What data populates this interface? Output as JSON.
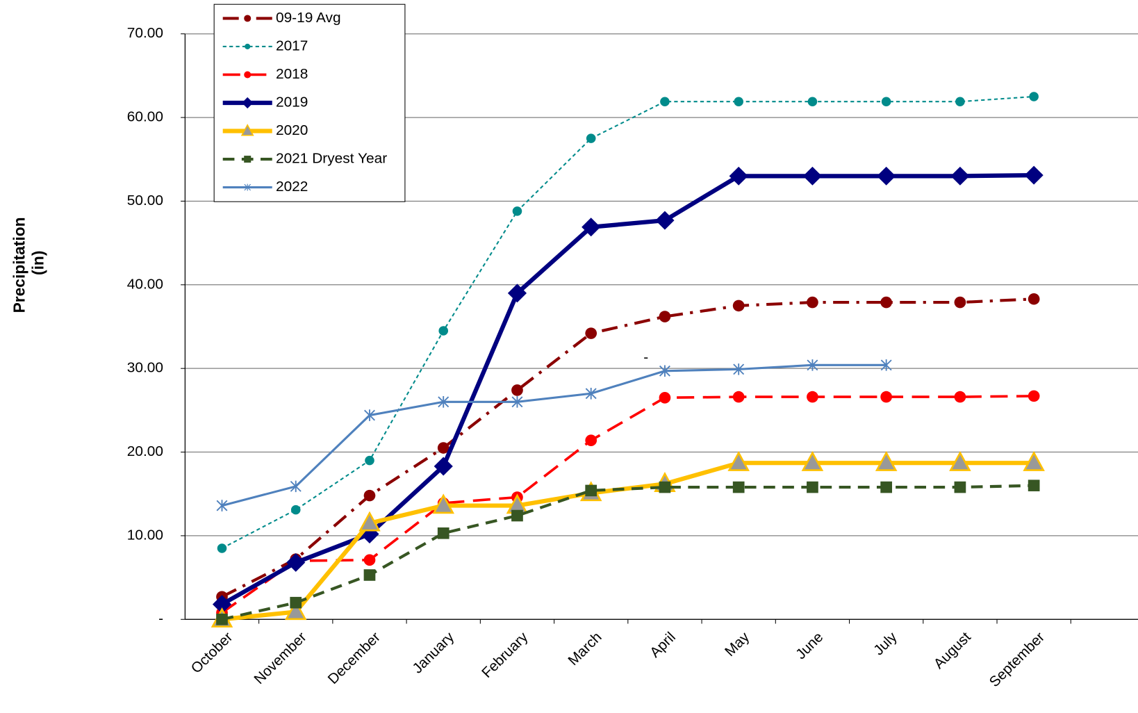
{
  "chart_data": {
    "type": "line",
    "y_label": [
      "Precipitation",
      "(in)"
    ],
    "annotations": [
      "-"
    ],
    "categories": [
      "October",
      "November",
      "December",
      "January",
      "February",
      "March",
      "April",
      "May",
      "June",
      "July",
      "August",
      "September",
      null
    ],
    "ylim": [
      0,
      70
    ],
    "yticks": [
      {
        "value": 0,
        "label": "-"
      },
      {
        "value": 10,
        "label": "10.00"
      },
      {
        "value": 20,
        "label": "20.00"
      },
      {
        "value": 30,
        "label": "30.00"
      },
      {
        "value": 40,
        "label": "40.00"
      },
      {
        "value": 50,
        "label": "50.00"
      },
      {
        "value": 60,
        "label": "60.00"
      },
      {
        "value": 70,
        "label": "70.00"
      }
    ],
    "grid": true,
    "legend": "top-left",
    "series": [
      {
        "name": "09-19 Avg",
        "color": "#8b0000",
        "dash": "22,10,4,10",
        "width": 4,
        "marker": "circle",
        "values": [
          2.7,
          7.2,
          14.8,
          20.5,
          27.4,
          34.2,
          36.2,
          37.5,
          37.9,
          37.9,
          37.9,
          38.3,
          null
        ]
      },
      {
        "name": "2017",
        "color": "#008b8b",
        "dash": "5,4",
        "width": 2,
        "marker": "circle-small",
        "values": [
          8.5,
          13.1,
          19.0,
          34.5,
          48.8,
          57.5,
          61.9,
          61.9,
          61.9,
          61.9,
          61.9,
          62.5,
          null
        ]
      },
      {
        "name": "2018",
        "color": "#ff0000",
        "dash": "24,12",
        "width": 3.5,
        "marker": "circle",
        "values": [
          0.8,
          7.0,
          7.1,
          13.9,
          14.6,
          21.4,
          26.5,
          26.6,
          26.6,
          26.6,
          26.6,
          26.7,
          null
        ]
      },
      {
        "name": "2019",
        "color": "#000080",
        "dash": "none",
        "width": 6,
        "marker": "diamond",
        "values": [
          1.8,
          6.8,
          10.2,
          18.3,
          39.0,
          46.9,
          47.7,
          53.0,
          53.0,
          53.0,
          53.0,
          53.1,
          null
        ]
      },
      {
        "name": "2020",
        "color": "#ffc000",
        "dash": "none",
        "width": 6,
        "marker": "triangle",
        "values": [
          0,
          0.9,
          11.5,
          13.6,
          13.6,
          15.1,
          16.2,
          18.7,
          18.7,
          18.7,
          18.7,
          18.7,
          null
        ]
      },
      {
        "name": "2021 Dryest Year",
        "color": "#375623",
        "dash": "16,10",
        "width": 4,
        "marker": "square",
        "values": [
          0,
          2.0,
          5.3,
          10.3,
          12.4,
          15.4,
          15.8,
          15.8,
          15.8,
          15.8,
          15.8,
          16.0,
          null
        ]
      },
      {
        "name": "2022",
        "color": "#4f81bd",
        "dash": "none",
        "width": 3,
        "marker": "star",
        "values": [
          13.6,
          15.9,
          24.4,
          26.0,
          26.0,
          27.0,
          29.7,
          29.9,
          30.4,
          30.4,
          null,
          null,
          null
        ]
      }
    ]
  }
}
